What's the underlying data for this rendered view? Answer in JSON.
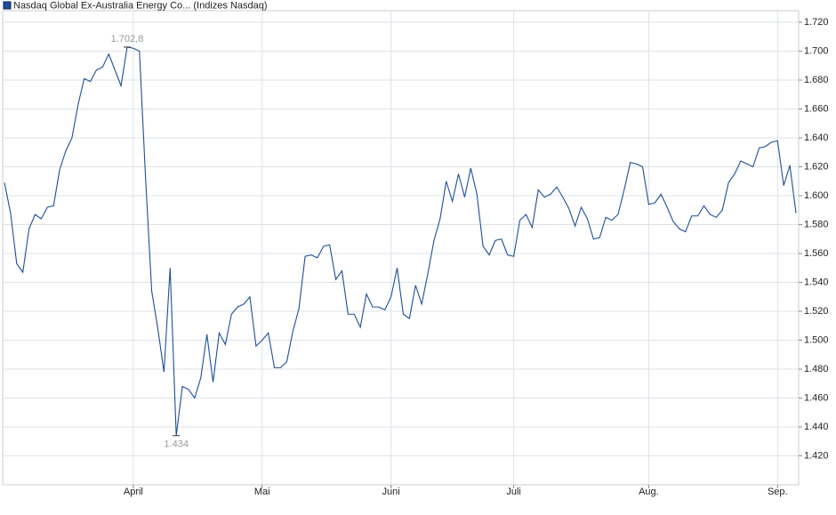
{
  "chart_data": {
    "type": "line",
    "series": [
      {
        "name": "Nasdaq Global Ex-Australia Energy Co... (Indizes Nasdaq)",
        "color": "#1c4f9c",
        "values": [
          1.609,
          1.588,
          1.553,
          1.547,
          1.577,
          1.587,
          1.584,
          1.592,
          1.593,
          1.618,
          1.631,
          1.64,
          1.663,
          1.681,
          1.679,
          1.687,
          1.689,
          1.698,
          1.687,
          1.676,
          1.7028,
          1.702,
          1.7,
          1.612,
          1.534,
          1.508,
          1.478,
          1.55,
          1.434,
          1.468,
          1.466,
          1.46,
          1.474,
          1.504,
          1.471,
          1.505,
          1.497,
          1.518,
          1.523,
          1.525,
          1.53,
          1.496,
          1.5,
          1.505,
          1.481,
          1.481,
          1.485,
          1.506,
          1.522,
          1.558,
          1.559,
          1.557,
          1.565,
          1.566,
          1.542,
          1.548,
          1.518,
          1.518,
          1.509,
          1.532,
          1.523,
          1.523,
          1.521,
          1.53,
          1.55,
          1.518,
          1.515,
          1.538,
          1.525,
          1.546,
          1.569,
          1.584,
          1.61,
          1.596,
          1.615,
          1.599,
          1.619,
          1.601,
          1.565,
          1.559,
          1.569,
          1.57,
          1.559,
          1.558,
          1.583,
          1.587,
          1.578,
          1.604,
          1.599,
          1.601,
          1.606,
          1.599,
          1.591,
          1.579,
          1.592,
          1.584,
          1.57,
          1.571,
          1.585,
          1.583,
          1.587,
          1.604,
          1.623,
          1.622,
          1.62,
          1.594,
          1.595,
          1.601,
          1.592,
          1.582,
          1.577,
          1.575,
          1.586,
          1.586,
          1.593,
          1.587,
          1.585,
          1.59,
          1.609,
          1.615,
          1.624,
          1.622,
          1.62,
          1.633,
          1.634,
          1.637,
          1.638,
          1.607,
          1.621,
          1.588
        ]
      }
    ],
    "xlim": [
      0,
      129
    ],
    "xticks": [
      {
        "value": 21,
        "label": "April"
      },
      {
        "value": 42,
        "label": "Mai"
      },
      {
        "value": 63,
        "label": "Juni"
      },
      {
        "value": 83,
        "label": "Juli"
      },
      {
        "value": 105,
        "label": "Aug."
      },
      {
        "value": 126,
        "label": "Sep."
      }
    ],
    "ylim": [
      1.4,
      1.728
    ],
    "yticks": [
      {
        "value": 1.42,
        "label": "1.420"
      },
      {
        "value": 1.44,
        "label": "1.440"
      },
      {
        "value": 1.46,
        "label": "1.460"
      },
      {
        "value": 1.48,
        "label": "1.480"
      },
      {
        "value": 1.5,
        "label": "1.500"
      },
      {
        "value": 1.52,
        "label": "1.520"
      },
      {
        "value": 1.54,
        "label": "1.540"
      },
      {
        "value": 1.56,
        "label": "1.560"
      },
      {
        "value": 1.58,
        "label": "1.580"
      },
      {
        "value": 1.6,
        "label": "1.600"
      },
      {
        "value": 1.62,
        "label": "1.620"
      },
      {
        "value": 1.64,
        "label": "1.640"
      },
      {
        "value": 1.66,
        "label": "1.660"
      },
      {
        "value": 1.68,
        "label": "1.680"
      },
      {
        "value": 1.7,
        "label": "1.700"
      },
      {
        "value": 1.72,
        "label": "1.720"
      }
    ],
    "annotations": [
      {
        "index": 20,
        "label": "1.702,8",
        "position": "above"
      },
      {
        "index": 28,
        "label": "1.434",
        "position": "below"
      }
    ],
    "grid": true
  }
}
